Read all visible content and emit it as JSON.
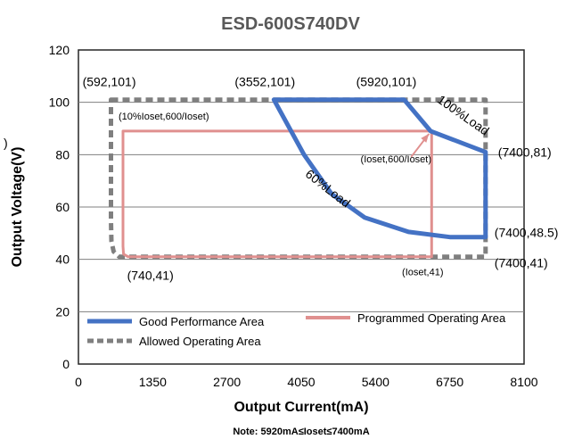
{
  "chart_data": {
    "type": "area",
    "title": "ESD-600S740DV",
    "xlabel": "Output Current(mA)",
    "ylabel": "Output Voltage(V)",
    "note": "Note:  5920mA≤Ioset≤7400mA",
    "xlim": [
      0,
      8100
    ],
    "ylim": [
      0,
      120
    ],
    "xticks": [
      "0",
      "1350",
      "2700",
      "4050",
      "5400",
      "6750",
      "8100"
    ],
    "yticks": [
      "0",
      "20",
      "40",
      "60",
      "80",
      "100",
      "120"
    ],
    "grid": "horizontal",
    "legend_position": "bottom-inside",
    "series": [
      {
        "name": "Good Performance Area",
        "color": "#4472c4",
        "style": "solid",
        "points": [
          [
            3552,
            101
          ],
          [
            5920,
            101
          ],
          [
            6400,
            89
          ],
          [
            7400,
            81
          ],
          [
            7400,
            48.5
          ],
          [
            6750,
            48.5
          ],
          [
            6000,
            50.5
          ],
          [
            5200,
            56
          ],
          [
            4600,
            65
          ],
          [
            4100,
            80
          ],
          [
            3552,
            101
          ]
        ]
      },
      {
        "name": "Programmed Operating Area",
        "color": "#e0908f",
        "style": "solid",
        "points": [
          [
            810,
            89
          ],
          [
            6420,
            89
          ],
          [
            6420,
            41
          ],
          [
            900,
            41
          ],
          [
            820,
            42
          ],
          [
            810,
            45
          ],
          [
            810,
            89
          ]
        ]
      },
      {
        "name": "Allowed Operating Area",
        "color": "#7f7f7f",
        "style": "dashed",
        "points": [
          [
            592,
            101
          ],
          [
            7400,
            101
          ],
          [
            7400,
            41
          ],
          [
            740,
            41
          ],
          [
            640,
            43
          ],
          [
            600,
            47
          ],
          [
            592,
            55
          ],
          [
            592,
            101
          ]
        ]
      }
    ],
    "annotations": [
      {
        "text": "(592,101)",
        "x": 592,
        "y": 101,
        "size": "normal"
      },
      {
        "text": "(3552,101)",
        "x": 3552,
        "y": 101,
        "size": "normal"
      },
      {
        "text": "(5920,101)",
        "x": 5920,
        "y": 101,
        "size": "normal"
      },
      {
        "text": "(10%Ioset,600/Ioset)",
        "x": 810,
        "y": 89,
        "size": "small"
      },
      {
        "text": "(Ioset,600/Ioset)",
        "x": 6420,
        "y": 89,
        "size": "small"
      },
      {
        "text": "(7400,81)",
        "x": 7400,
        "y": 81,
        "size": "normal"
      },
      {
        "text": "(7400,48.5)",
        "x": 7400,
        "y": 48.5,
        "size": "normal"
      },
      {
        "text": "(7400,41)",
        "x": 7400,
        "y": 41,
        "size": "normal"
      },
      {
        "text": "(740,41)",
        "x": 740,
        "y": 41,
        "size": "normal"
      },
      {
        "text": "(Ioset,41)",
        "x": 6420,
        "y": 41,
        "size": "small"
      },
      {
        "text": "100%Load",
        "rotated": true
      },
      {
        "text": "60%Load",
        "rotated": true
      },
      {
        "text": ")",
        "size": "normal"
      }
    ]
  }
}
